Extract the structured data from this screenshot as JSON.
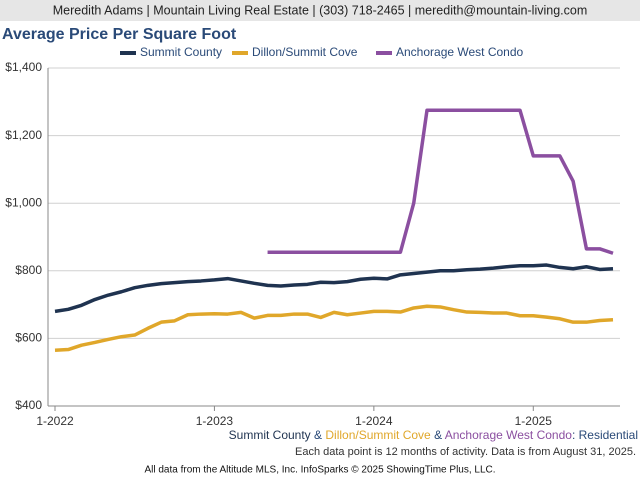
{
  "header": {
    "text": "Meredith Adams | Mountain Living Real Estate | (303) 718-2465 | meredith@mountain-living.com"
  },
  "chart_data": {
    "type": "line",
    "title": "Average Price Per Square Foot",
    "categories": [
      "1-2022",
      null,
      null,
      null,
      null,
      null,
      null,
      null,
      null,
      null,
      null,
      null,
      "1-2023",
      null,
      null,
      null,
      null,
      null,
      null,
      null,
      null,
      null,
      null,
      null,
      "1-2024",
      null,
      null,
      null,
      null,
      null,
      null,
      null,
      null,
      null,
      null,
      null,
      "1-2025",
      null,
      null,
      null,
      null,
      null,
      null
    ],
    "series": [
      {
        "name": "Summit County",
        "color": "#1f3350",
        "values": [
          680,
          686,
          698,
          715,
          728,
          738,
          750,
          757,
          762,
          765,
          768,
          770,
          773,
          777,
          770,
          763,
          757,
          755,
          758,
          760,
          766,
          765,
          768,
          775,
          778,
          776,
          788,
          792,
          796,
          800,
          800,
          803,
          805,
          808,
          812,
          815,
          815,
          817,
          810,
          806,
          812,
          804,
          806
        ]
      },
      {
        "name": "Dillon/Summit Cove",
        "color": "#e0a72a",
        "values": [
          565,
          567,
          580,
          588,
          597,
          605,
          610,
          630,
          648,
          652,
          670,
          672,
          673,
          672,
          677,
          660,
          668,
          668,
          672,
          672,
          662,
          677,
          670,
          675,
          680,
          680,
          678,
          690,
          695,
          693,
          685,
          678,
          677,
          675,
          675,
          667,
          667,
          663,
          658,
          648,
          648,
          653,
          655
        ]
      },
      {
        "name": "Anchorage West Condo",
        "color": "#8b4fa0",
        "values": [
          null,
          null,
          null,
          null,
          null,
          null,
          null,
          null,
          null,
          null,
          null,
          null,
          null,
          null,
          null,
          null,
          855,
          855,
          855,
          855,
          855,
          855,
          855,
          855,
          855,
          855,
          855,
          1000,
          1275,
          1275,
          1275,
          1275,
          1275,
          1275,
          1275,
          1275,
          1140,
          1140,
          1140,
          1065,
          865,
          865,
          852
        ]
      }
    ],
    "ylim": [
      400,
      1400
    ],
    "yticks": [
      {
        "value": 400,
        "label": "$400"
      },
      {
        "value": 600,
        "label": "$600"
      },
      {
        "value": 800,
        "label": "$800"
      },
      {
        "value": 1000,
        "label": "$1,000"
      },
      {
        "value": 1200,
        "label": "$1,200"
      },
      {
        "value": 1400,
        "label": "$1,400"
      }
    ],
    "grid": true,
    "legend": "top",
    "caption": [
      "Summit County",
      " & ",
      "Dillon/Summit Cove",
      " & ",
      "Anchorage West Condo",
      ": Residential"
    ],
    "note": "Each data point is 12 months of activity. Data is from August 31, 2025.",
    "source": "All data from the Altitude MLS, Inc. InfoSparks © 2025 ShowingTime Plus, LLC."
  }
}
